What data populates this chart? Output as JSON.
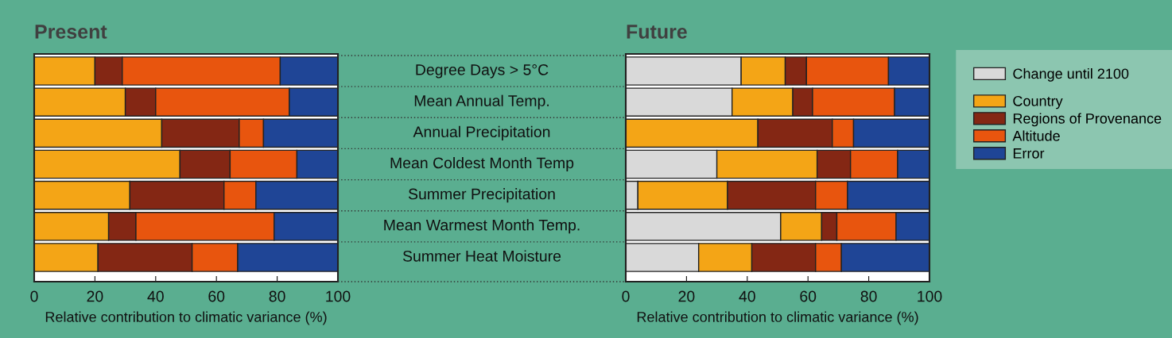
{
  "chart_data": [
    {
      "type": "bar",
      "title": "Present",
      "orientation": "horizontal",
      "stacked": true,
      "xlabel": "Relative contribution to climatic variance (%)",
      "categories": [
        "Degree Days > 5°C",
        "Mean Annual Temp.",
        "Annual Precipitation",
        "Mean Coldest Month Temp",
        "Summer Precipitation",
        "Mean Warmest Month Temp.",
        "Summer Heat Moisture"
      ],
      "series": [
        {
          "color": "#f4a516",
          "values": [
            20,
            30,
            42,
            48,
            31.5,
            24.5,
            21
          ]
        },
        {
          "color": "#842714",
          "values": [
            9,
            10,
            25.5,
            16.5,
            31,
            9,
            31
          ]
        },
        {
          "color": "#e8550e",
          "values": [
            52,
            44,
            8,
            22,
            10.5,
            45.5,
            15
          ]
        },
        {
          "color": "#1f4596",
          "values": [
            19,
            16,
            24.5,
            13.5,
            27,
            21,
            33
          ]
        }
      ],
      "xlim": [
        0,
        100
      ],
      "xticks": [
        0,
        20,
        40,
        60,
        80,
        100
      ],
      "tick_labels": "x",
      "grid": false,
      "legend": false
    },
    {
      "type": "bar",
      "title": "Future",
      "orientation": "horizontal",
      "stacked": true,
      "xlabel": "Relative contribution to climatic variance (%)",
      "categories": [
        "Degree Days > 5°C",
        "Mean Annual Temp.",
        "Annual Precipitation",
        "Mean Coldest Month Temp",
        "Summer Precipitation",
        "Mean Warmest Month Temp.",
        "Summer Heat Moisture"
      ],
      "series": [
        {
          "name": "Change until 2100",
          "color": "#d9d9d9",
          "values": [
            38,
            35,
            0,
            30,
            4,
            51,
            24
          ]
        },
        {
          "name": "Country",
          "color": "#f4a516",
          "values": [
            14.5,
            20,
            43.5,
            33,
            29.5,
            13.5,
            17.5
          ]
        },
        {
          "name": "Regions of Provenance",
          "color": "#842714",
          "values": [
            7,
            6.5,
            24.5,
            11,
            29,
            5,
            21
          ]
        },
        {
          "name": "Altitude",
          "color": "#e8550e",
          "values": [
            27,
            27,
            7,
            15.5,
            10.5,
            19.5,
            8.5
          ]
        },
        {
          "name": "Error",
          "color": "#1f4596",
          "values": [
            13.5,
            11.5,
            25,
            10.5,
            27,
            11,
            29
          ]
        }
      ],
      "xlim": [
        0,
        100
      ],
      "xticks": [
        0,
        20,
        40,
        60,
        80,
        100
      ],
      "tick_labels": "x",
      "grid": false,
      "legend": "right"
    }
  ]
}
